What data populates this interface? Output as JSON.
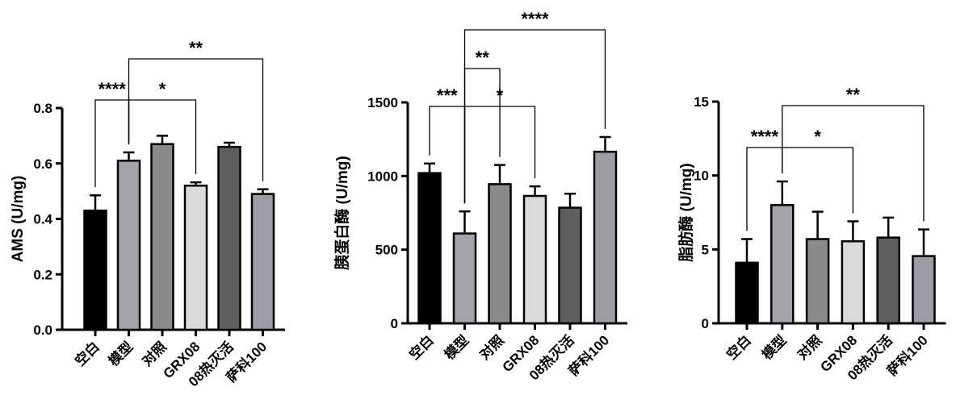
{
  "colors": {
    "空白": "#000000",
    "模型": "#a3a3ab",
    "对照": "#8a8a8a",
    "GRX08": "#d9d9d9",
    "08热灭活": "#5f5f5f",
    "萨科100": "#9c9ca4"
  },
  "chart_data": [
    {
      "type": "bar",
      "ylabel": "AMS (U/mg)",
      "categories": [
        "空白",
        "模型",
        "对照",
        "GRX08",
        "08热灭活",
        "萨科100"
      ],
      "values": [
        0.43,
        0.61,
        0.67,
        0.52,
        0.66,
        0.49
      ],
      "errors": [
        0.055,
        0.03,
        0.03,
        0.012,
        0.015,
        0.017
      ],
      "ylim": [
        0,
        0.8
      ],
      "yticks": [
        "0.0",
        "0.2",
        "0.4",
        "0.6",
        "0.8"
      ],
      "significance": [
        {
          "from": 0,
          "to": 1,
          "label": "****"
        },
        {
          "from": 1,
          "to": 3,
          "label": "*"
        },
        {
          "from": 1,
          "to": 5,
          "label": "**"
        }
      ]
    },
    {
      "type": "bar",
      "ylabel": "胰蛋白酶 (U/mg)",
      "categories": [
        "空白",
        "模型",
        "对照",
        "GRX08",
        "08热灭活",
        "萨科100"
      ],
      "values": [
        1020,
        610,
        945,
        865,
        785,
        1165
      ],
      "errors": [
        65,
        150,
        130,
        65,
        95,
        100
      ],
      "ylim": [
        0,
        1500
      ],
      "yticks": [
        "0",
        "500",
        "1000",
        "1500"
      ],
      "significance": [
        {
          "from": 0,
          "to": 1,
          "label": "***"
        },
        {
          "from": 1,
          "to": 3,
          "label": "*"
        },
        {
          "from": 1,
          "to": 2,
          "label": "**"
        },
        {
          "from": 1,
          "to": 5,
          "label": "****"
        }
      ]
    },
    {
      "type": "bar",
      "ylabel": "脂肪酶 (U/mg)",
      "categories": [
        "空白",
        "模型",
        "对照",
        "GRX08",
        "08热灭活",
        "萨科100"
      ],
      "values": [
        4.1,
        8.0,
        5.7,
        5.55,
        5.8,
        4.55
      ],
      "errors": [
        1.6,
        1.6,
        1.85,
        1.35,
        1.35,
        1.8
      ],
      "ylim": [
        0,
        15
      ],
      "yticks": [
        "0",
        "5",
        "10",
        "15"
      ],
      "significance": [
        {
          "from": 0,
          "to": 1,
          "label": "****"
        },
        {
          "from": 1,
          "to": 3,
          "label": "*"
        },
        {
          "from": 1,
          "to": 5,
          "label": "**"
        }
      ]
    }
  ]
}
